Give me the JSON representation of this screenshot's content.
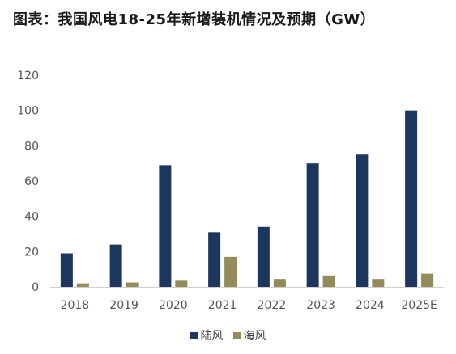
{
  "chart_data": {
    "type": "bar",
    "title": "图表：我国风电18-25年新增装机情况及预期（GW）",
    "categories": [
      "2018",
      "2019",
      "2020",
      "2021",
      "2022",
      "2023",
      "2024",
      "2025E"
    ],
    "series": [
      {
        "name": "陆风",
        "color": "#1c365e",
        "values": [
          19,
          24,
          69,
          31,
          34,
          70,
          75,
          100
        ]
      },
      {
        "name": "海风",
        "color": "#948b5a",
        "values": [
          2,
          2.5,
          3.5,
          17,
          4.5,
          6.5,
          4.5,
          7.5
        ]
      }
    ],
    "ylim": [
      0,
      120
    ],
    "yticks": [
      "0",
      "20",
      "40",
      "60",
      "80",
      "100",
      "120"
    ],
    "grid": false,
    "legend_position": "bottom"
  }
}
